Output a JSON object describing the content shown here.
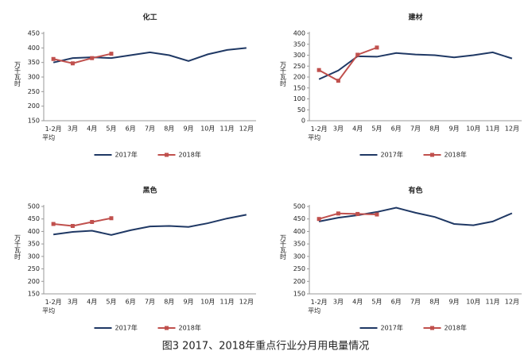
{
  "caption": "图3 2017、2018年重点行业分月用电量情况",
  "chart_data": [
    {
      "type": "line",
      "title": "化工",
      "ylabel": "万千瓦时",
      "categories": [
        "1-2月\n平均",
        "3月",
        "4月",
        "5月",
        "6月",
        "7月",
        "8月",
        "9月",
        "10月",
        "11月",
        "12月"
      ],
      "ylim": [
        150,
        450
      ],
      "yticks": [
        150,
        200,
        250,
        300,
        350,
        400,
        450
      ],
      "legend": "bottom",
      "series": [
        {
          "name": "2017年",
          "color": "#1f3864",
          "marker": "none",
          "values": [
            350,
            365,
            368,
            365,
            375,
            385,
            375,
            355,
            378,
            393,
            400
          ]
        },
        {
          "name": "2018年",
          "color": "#c0504d",
          "marker": "square",
          "values": [
            362,
            347,
            365,
            380,
            null,
            null,
            null,
            null,
            null,
            null,
            null
          ]
        }
      ]
    },
    {
      "type": "line",
      "title": "建材",
      "ylabel": "万千瓦时",
      "categories": [
        "1-2月\n平均",
        "3月",
        "4月",
        "5月",
        "6月",
        "7月",
        "8月",
        "9月",
        "10月",
        "11月",
        "12月"
      ],
      "ylim": [
        0,
        400
      ],
      "yticks": [
        0,
        50,
        100,
        150,
        200,
        250,
        300,
        350,
        400
      ],
      "legend": "bottom",
      "series": [
        {
          "name": "2017年",
          "color": "#1f3864",
          "marker": "none",
          "values": [
            190,
            230,
            295,
            293,
            310,
            303,
            300,
            290,
            300,
            313,
            285
          ]
        },
        {
          "name": "2018年",
          "color": "#c0504d",
          "marker": "square",
          "values": [
            232,
            183,
            302,
            335,
            null,
            null,
            null,
            null,
            null,
            null,
            null
          ]
        }
      ]
    },
    {
      "type": "line",
      "title": "黑色",
      "ylabel": "万千瓦时",
      "categories": [
        "1-2月\n平均",
        "3月",
        "4月",
        "5月",
        "6月",
        "7月",
        "8月",
        "9月",
        "10月",
        "11月",
        "12月"
      ],
      "ylim": [
        150,
        500
      ],
      "yticks": [
        150,
        200,
        250,
        300,
        350,
        400,
        450,
        500
      ],
      "legend": "bottom",
      "series": [
        {
          "name": "2017年",
          "color": "#1f3864",
          "marker": "none",
          "values": [
            388,
            398,
            403,
            386,
            405,
            420,
            422,
            418,
            433,
            452,
            467
          ]
        },
        {
          "name": "2018年",
          "color": "#c0504d",
          "marker": "square",
          "values": [
            430,
            422,
            438,
            453,
            null,
            null,
            null,
            null,
            null,
            null,
            null
          ]
        }
      ]
    },
    {
      "type": "line",
      "title": "有色",
      "ylabel": "万千瓦时",
      "categories": [
        "1-2月\n平均",
        "3月",
        "4月",
        "5月",
        "6月",
        "7月",
        "8月",
        "9月",
        "10月",
        "11月",
        "12月"
      ],
      "ylim": [
        150,
        500
      ],
      "yticks": [
        150,
        200,
        250,
        300,
        350,
        400,
        450,
        500
      ],
      "legend": "bottom",
      "series": [
        {
          "name": "2017年",
          "color": "#1f3864",
          "marker": "none",
          "values": [
            440,
            455,
            465,
            478,
            495,
            475,
            458,
            430,
            425,
            440,
            473
          ]
        },
        {
          "name": "2018年",
          "color": "#c0504d",
          "marker": "square",
          "values": [
            450,
            472,
            470,
            468,
            null,
            null,
            null,
            null,
            null,
            null,
            null
          ]
        }
      ]
    }
  ]
}
